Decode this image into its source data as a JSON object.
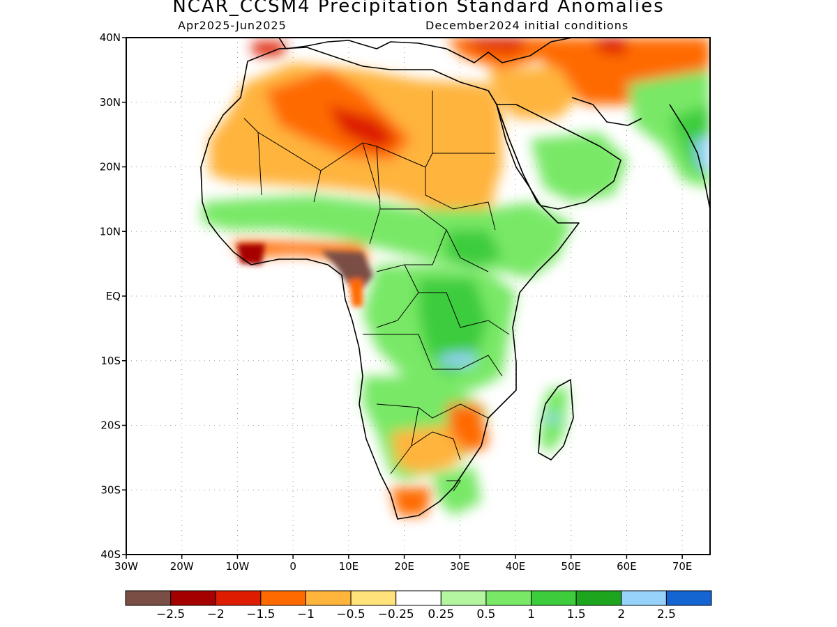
{
  "title": "NCAR_CCSM4 Precipitation Standard Anomalies",
  "period": "Apr2025-Jun2025",
  "init": "December2024 initial conditions",
  "lat_labels": [
    "40N",
    "30N",
    "20N",
    "10N",
    "EQ",
    "10S",
    "20S",
    "30S",
    "40S"
  ],
  "lat_values": [
    40,
    30,
    20,
    10,
    0,
    -10,
    -20,
    -30,
    -40
  ],
  "lon_labels": [
    "30W",
    "20W",
    "10W",
    "0",
    "10E",
    "20E",
    "30E",
    "40E",
    "50E",
    "60E",
    "70E"
  ],
  "lon_values": [
    -30,
    -20,
    -10,
    0,
    10,
    20,
    30,
    40,
    50,
    60,
    70
  ],
  "colorbar": {
    "colors": [
      "#7a4e44",
      "#a50000",
      "#dd1c00",
      "#ff6a00",
      "#ffb43c",
      "#ffe27a",
      "#ffffff",
      "#b4f5a0",
      "#78e866",
      "#3ccc3c",
      "#1ea51e",
      "#96d2fa",
      "#1464d2"
    ],
    "labels": [
      "-2.5",
      "-2",
      "-1.5",
      "-1",
      "-0.5",
      "-0.25",
      "0.25",
      "0.5",
      "1",
      "1.5",
      "2",
      "2.5"
    ]
  },
  "colors": {
    "ocean": "#ffffff",
    "coast": "#000000"
  }
}
